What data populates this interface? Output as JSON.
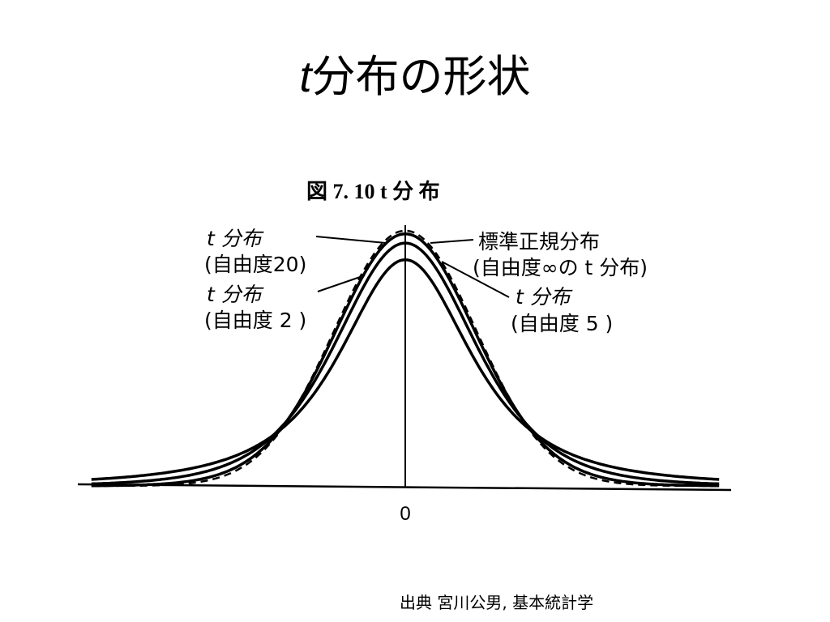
{
  "slide": {
    "title_t": "t",
    "title_rest": "分布の形状",
    "source": "出典 宮川公男, 基本統計学"
  },
  "chart_data": {
    "type": "line",
    "title": "図 7. 10 t 分 布",
    "x_tick_labels": [
      "0"
    ],
    "series": [
      {
        "name": "標準正規分布 (自由度∞の t 分布)",
        "df": null,
        "style": "dashed",
        "peak_density": 0.3989
      },
      {
        "name": "t 分布 (自由度20)",
        "df": 20,
        "style": "solid",
        "peak_density": 0.394
      },
      {
        "name": "t 分布 (自由度 5)",
        "df": 5,
        "style": "solid",
        "peak_density": 0.3796
      },
      {
        "name": "t 分布 (自由度 2)",
        "df": 2,
        "style": "solid",
        "peak_density": 0.3536
      }
    ],
    "labels": {
      "df20_line1": "t 分布",
      "df20_line2": "(自由度20)",
      "df2_line1": "t 分布",
      "df2_line2": "(自由度 2 )",
      "normal_line1": "標準正規分布",
      "normal_line2": "(自由度∞の t 分布)",
      "df5_line1": "t 分布",
      "df5_line2": "(自由度 5 )"
    },
    "colors": {
      "ink": "#000000",
      "background": "#ffffff"
    }
  }
}
